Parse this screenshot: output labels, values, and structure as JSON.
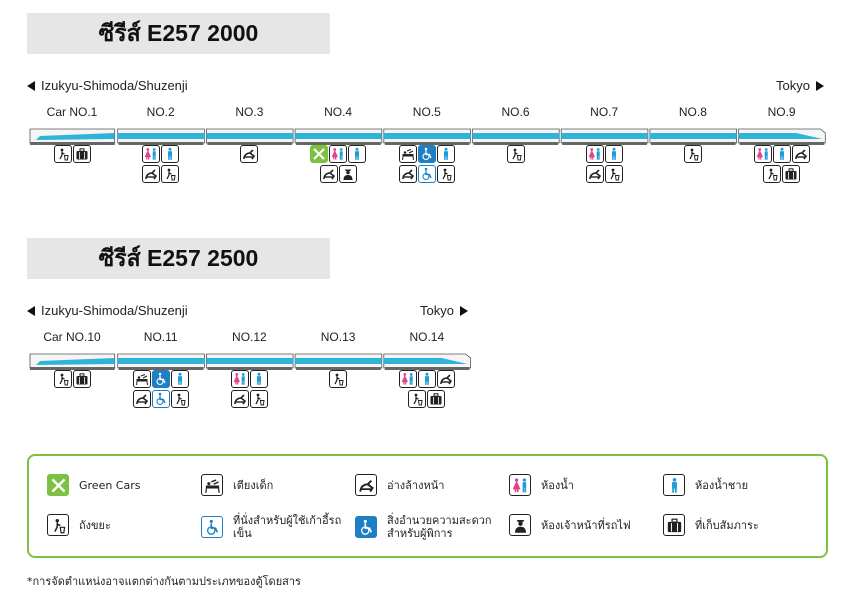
{
  "series": [
    {
      "title": "ซีรีส์ E257 2000",
      "dir_left": "Izukyu-Shimoda/Shuzenji",
      "dir_right": "Tokyo",
      "cars": [
        {
          "label": "Car NO.1",
          "icons": [
            [
              "trash",
              "luggage"
            ]
          ]
        },
        {
          "label": "NO.2",
          "icons": [
            [
              "toilet",
              "mens"
            ],
            [
              "washbasin",
              "trash"
            ]
          ]
        },
        {
          "label": "NO.3",
          "icons": [
            [
              "washbasin"
            ]
          ]
        },
        {
          "label": "NO.4",
          "icons": [
            [
              "green",
              "toilet",
              "mens"
            ],
            [
              "washbasin",
              "conductor"
            ]
          ]
        },
        {
          "label": "NO.5",
          "icons": [
            [
              "babybed",
              "accessible",
              "mens"
            ],
            [
              "washbasin",
              "wheelchair",
              "trash"
            ]
          ]
        },
        {
          "label": "NO.6",
          "icons": [
            [
              "trash"
            ]
          ]
        },
        {
          "label": "NO.7",
          "icons": [
            [
              "toilet",
              "mens"
            ],
            [
              "washbasin",
              "trash"
            ]
          ]
        },
        {
          "label": "NO.8",
          "icons": [
            [
              "trash"
            ]
          ]
        },
        {
          "label": "NO.9",
          "icons": [
            [
              "toilet",
              "mens",
              "washbasin"
            ],
            [
              "trash",
              "luggage"
            ]
          ]
        }
      ]
    },
    {
      "title": "ซีรีส์ E257 2500",
      "dir_left": "Izukyu-Shimoda/Shuzenji",
      "dir_right": "Tokyo",
      "cars": [
        {
          "label": "Car NO.10",
          "icons": [
            [
              "trash",
              "luggage"
            ]
          ]
        },
        {
          "label": "NO.11",
          "icons": [
            [
              "babybed",
              "accessible",
              "mens"
            ],
            [
              "washbasin",
              "wheelchair",
              "trash"
            ]
          ]
        },
        {
          "label": "NO.12",
          "icons": [
            [
              "toilet",
              "mens"
            ],
            [
              "washbasin",
              "trash"
            ]
          ]
        },
        {
          "label": "NO.13",
          "icons": [
            [
              "trash"
            ]
          ]
        },
        {
          "label": "NO.14",
          "icons": [
            [
              "toilet",
              "mens",
              "washbasin"
            ],
            [
              "trash",
              "luggage"
            ]
          ]
        }
      ]
    }
  ],
  "legend": [
    {
      "icon": "green",
      "text": "Green Cars"
    },
    {
      "icon": "babybed",
      "text": "เตียงเด็ก"
    },
    {
      "icon": "washbasin",
      "text": "อ่างล้างหน้า"
    },
    {
      "icon": "toilet",
      "text": "ห้องน้ำ"
    },
    {
      "icon": "mens",
      "text": "ห้องน้ำชาย"
    },
    {
      "icon": "trash",
      "text": "ถังขยะ"
    },
    {
      "icon": "wheelchair",
      "text": "ที่นั่งสำหรับผู้ใช้เก้าอี้รถเข็น"
    },
    {
      "icon": "accessible",
      "text": "สิ่งอำนวยความสะดวกสำหรับผู้พิการ"
    },
    {
      "icon": "conductor",
      "text": "ห้องเจ้าหน้าที่รถไฟ"
    },
    {
      "icon": "luggage",
      "text": "ที่เก็บสัมภาระ"
    }
  ],
  "note": "*การจัดตำแหน่งอาจแตกต่างกันตามประเภทของตู้โดยสาร",
  "colors": {
    "accent_blue": "#1e7fc4",
    "train_stripe": "#2fb3d9",
    "green": "#7dc142"
  }
}
